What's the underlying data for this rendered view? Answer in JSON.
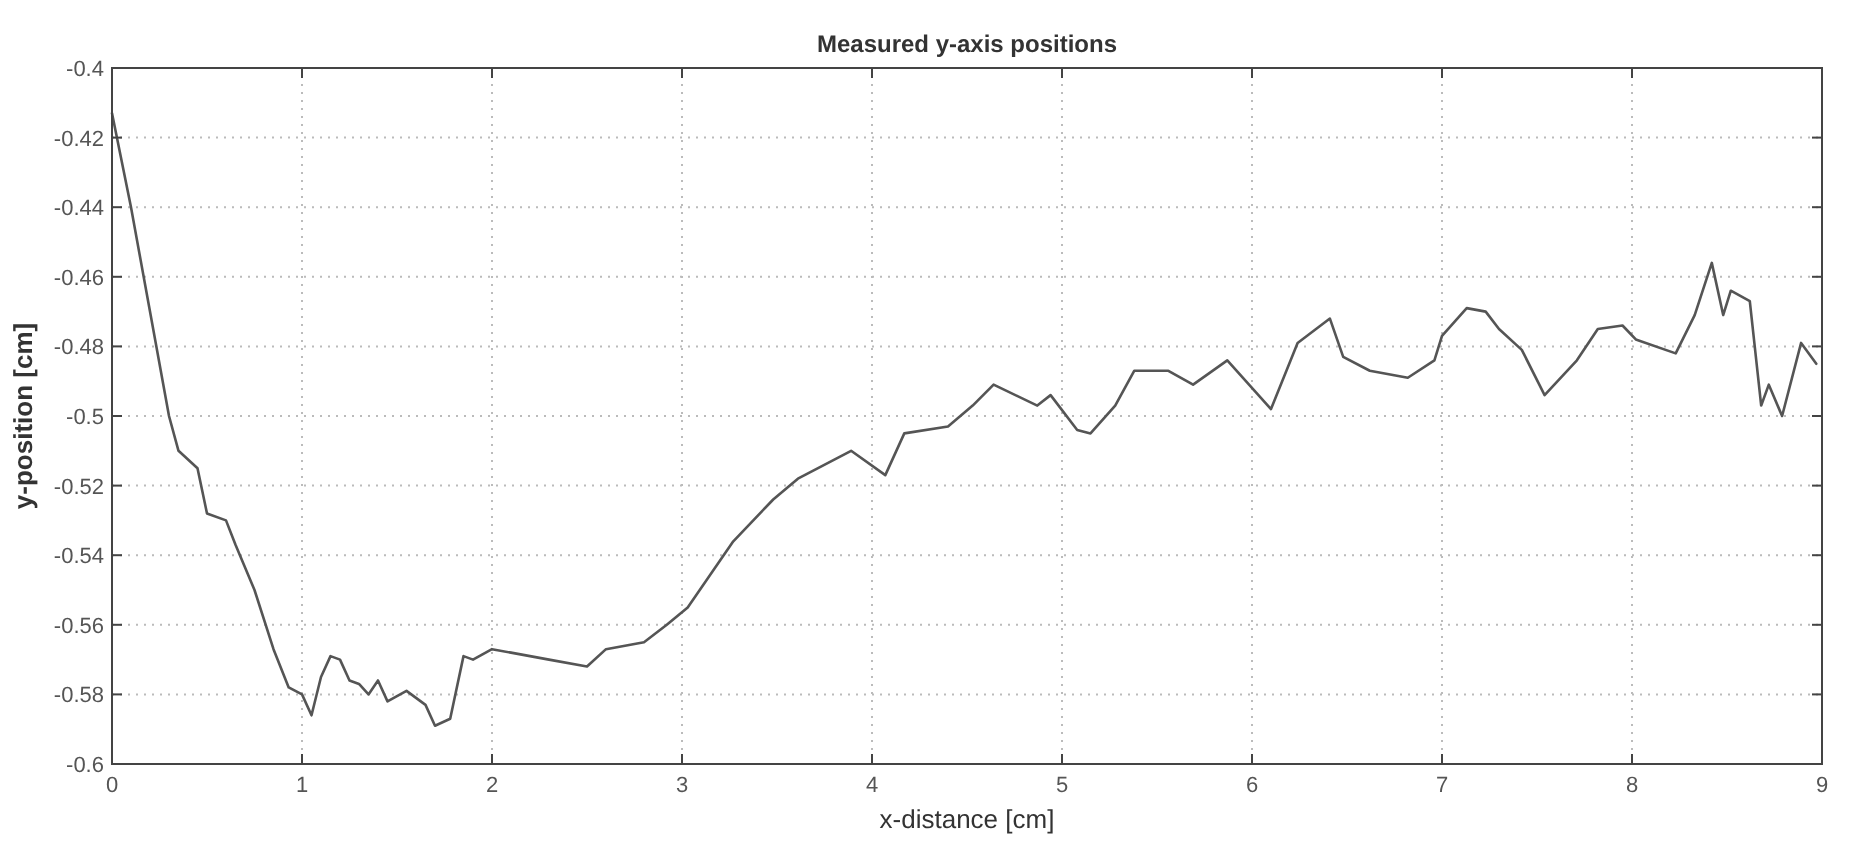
{
  "chart_data": {
    "type": "line",
    "title": "Measured y-axis positions",
    "xlabel": "x-distance [cm]",
    "ylabel": "y-position [cm]",
    "xlim": [
      0,
      9
    ],
    "xticks": [
      0,
      1,
      2,
      3,
      4,
      5,
      6,
      7,
      8,
      9
    ],
    "ylim": [
      -0.6,
      -0.4
    ],
    "yticks": [
      -0.6,
      -0.58,
      -0.56,
      -0.54,
      -0.52,
      -0.5,
      -0.48,
      -0.46,
      -0.44,
      -0.42,
      -0.4
    ],
    "grid": true,
    "line_style": "solid",
    "marker": "none",
    "series": [
      {
        "color": "#555555",
        "x": [
          0,
          0.1,
          0.2,
          0.3,
          0.35,
          0.45,
          0.5,
          0.6,
          0.65,
          0.75,
          0.85,
          0.93,
          1.0,
          1.05,
          1.1,
          1.15,
          1.2,
          1.25,
          1.3,
          1.35,
          1.4,
          1.45,
          1.55,
          1.65,
          1.7,
          1.78,
          1.85,
          1.9,
          2.0,
          2.1,
          2.3,
          2.5,
          2.6,
          2.8,
          2.92,
          3.03,
          3.27,
          3.48,
          3.61,
          3.89,
          4.07,
          4.17,
          4.4,
          4.53,
          4.64,
          4.87,
          4.94,
          5.08,
          5.15,
          5.28,
          5.38,
          5.56,
          5.69,
          5.87,
          6.1,
          6.24,
          6.41,
          6.48,
          6.62,
          6.82,
          6.96,
          7.0,
          7.13,
          7.23,
          7.3,
          7.42,
          7.54,
          7.71,
          7.82,
          7.95,
          8.02,
          8.23,
          8.33,
          8.42,
          8.48,
          8.52,
          8.62,
          8.68,
          8.72,
          8.79,
          8.89,
          8.97
        ],
        "values": [
          -0.413,
          -0.44,
          -0.47,
          -0.5,
          -0.51,
          -0.515,
          -0.528,
          -0.53,
          -0.537,
          -0.55,
          -0.567,
          -0.578,
          -0.58,
          -0.586,
          -0.575,
          -0.569,
          -0.57,
          -0.576,
          -0.577,
          -0.58,
          -0.576,
          -0.582,
          -0.579,
          -0.583,
          -0.589,
          -0.587,
          -0.569,
          -0.57,
          -0.567,
          -0.568,
          -0.57,
          -0.572,
          -0.567,
          -0.565,
          -0.56,
          -0.555,
          -0.536,
          -0.524,
          -0.518,
          -0.51,
          -0.517,
          -0.505,
          -0.503,
          -0.497,
          -0.491,
          -0.497,
          -0.494,
          -0.504,
          -0.505,
          -0.497,
          -0.487,
          -0.487,
          -0.491,
          -0.484,
          -0.498,
          -0.479,
          -0.472,
          -0.483,
          -0.487,
          -0.489,
          -0.484,
          -0.477,
          -0.469,
          -0.47,
          -0.475,
          -0.481,
          -0.494,
          -0.484,
          -0.475,
          -0.474,
          -0.478,
          -0.482,
          -0.471,
          -0.456,
          -0.471,
          -0.464,
          -0.467,
          -0.497,
          -0.491,
          -0.5,
          -0.479,
          -0.485
        ]
      }
    ]
  }
}
